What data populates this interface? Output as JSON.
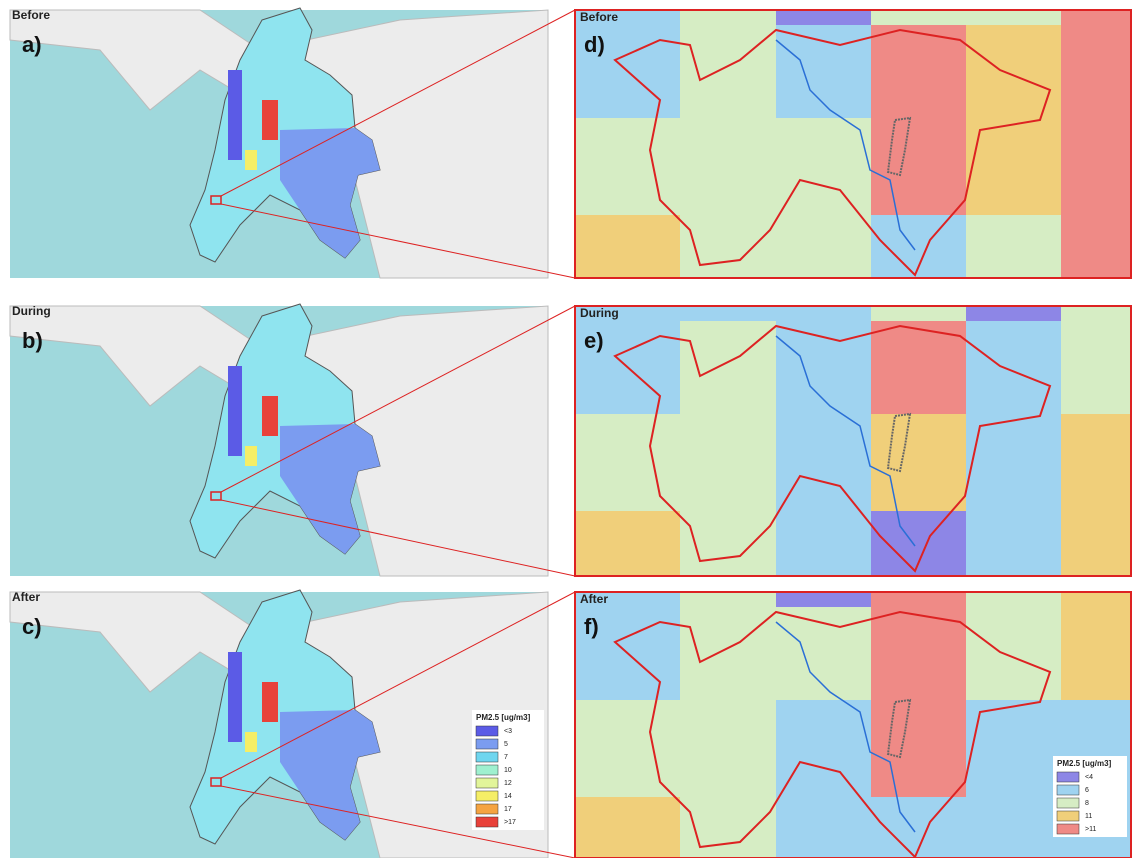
{
  "panels": [
    {
      "period": "Before",
      "overview_label": "a)",
      "zoom_label": "d)"
    },
    {
      "period": "During",
      "overview_label": "b)",
      "zoom_label": "e)"
    },
    {
      "period": "After",
      "overview_label": "c)",
      "zoom_label": "f)"
    }
  ],
  "legend_overview": {
    "title": "PM2.5 [ug/m3]",
    "items": [
      {
        "label": "<3",
        "color": "#5b5be6"
      },
      {
        "label": "5",
        "color": "#7b9cf0"
      },
      {
        "label": "7",
        "color": "#6fd6ef"
      },
      {
        "label": "10",
        "color": "#9ff0cf"
      },
      {
        "label": "12",
        "color": "#e2f59a"
      },
      {
        "label": "14",
        "color": "#f5ee66"
      },
      {
        "label": "17",
        "color": "#f5a442"
      },
      {
        "label": ">17",
        "color": "#e8413a"
      }
    ]
  },
  "legend_zoom": {
    "title": "PM2.5 [ug/m3]",
    "items": [
      {
        "label": "<4",
        "color": "#8d86e6"
      },
      {
        "label": "6",
        "color": "#9fd3f0"
      },
      {
        "label": "8",
        "color": "#d6edc4"
      },
      {
        "label": "11",
        "color": "#f0cf7a"
      },
      {
        "label": ">11",
        "color": "#ef8a86"
      }
    ]
  }
}
